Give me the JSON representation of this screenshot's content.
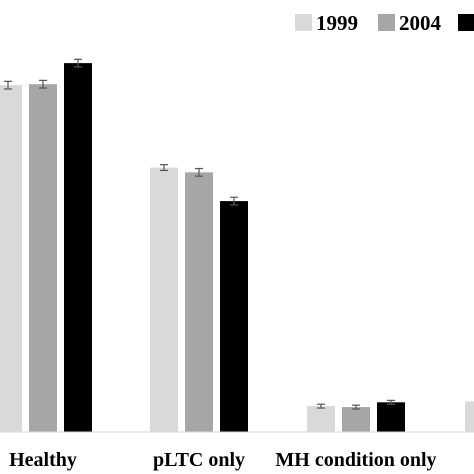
{
  "chart_data": {
    "type": "bar",
    "categories": [
      "Healthy",
      "pLTC only",
      "MH condition only",
      ""
    ],
    "series": [
      {
        "name": "1999",
        "color": "#d9d9d9",
        "values": [
          362,
          276,
          27,
          32
        ],
        "errors": [
          4,
          3,
          2,
          2
        ]
      },
      {
        "name": "2004",
        "color": "#a6a6a6",
        "values": [
          363,
          271,
          26,
          null
        ],
        "errors": [
          4,
          4,
          2,
          null
        ]
      },
      {
        "name": "",
        "color": "#000000",
        "values": [
          385,
          241,
          31,
          null
        ],
        "errors": [
          4,
          4,
          2,
          null
        ]
      }
    ],
    "ylim": [
      0,
      430
    ],
    "grid": false,
    "legend_position": "top-right",
    "title": "",
    "xlabel": "",
    "ylabel": ""
  }
}
